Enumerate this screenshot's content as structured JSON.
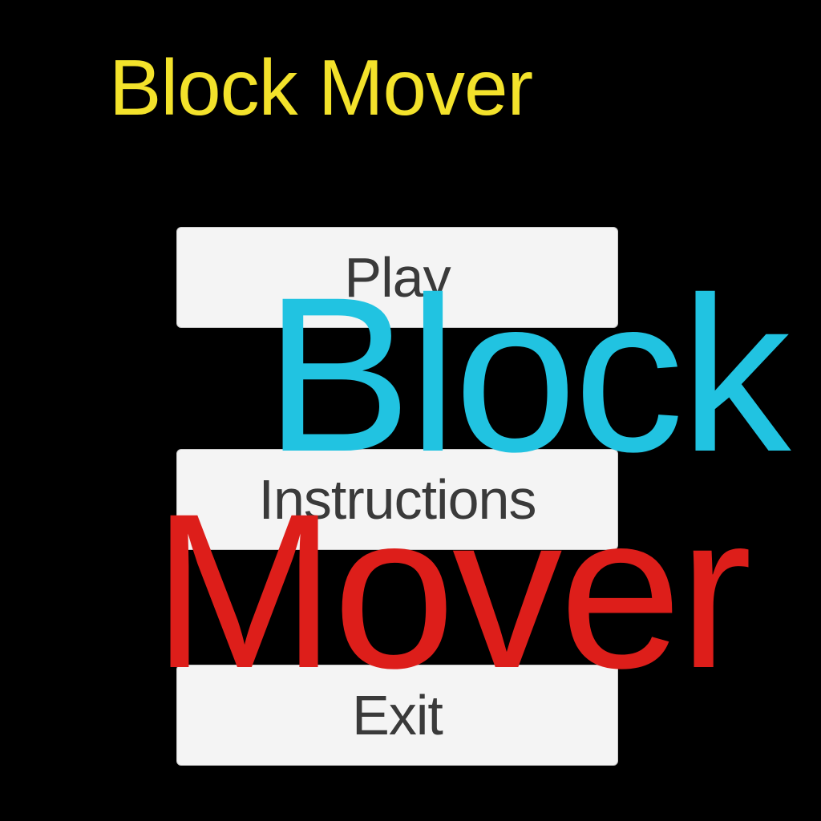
{
  "title": "Block Mover",
  "menu": {
    "play_label": "Play",
    "instructions_label": "Instructions",
    "exit_label": "Exit"
  },
  "overlay": {
    "line1": "Block",
    "line2": "Mover"
  },
  "colors": {
    "background": "#000000",
    "title": "#f3e22b",
    "button_bg": "#f4f4f4",
    "button_text": "#3a3a3a",
    "overlay_line1": "#21c3e1",
    "overlay_line2": "#dd1e1a"
  }
}
